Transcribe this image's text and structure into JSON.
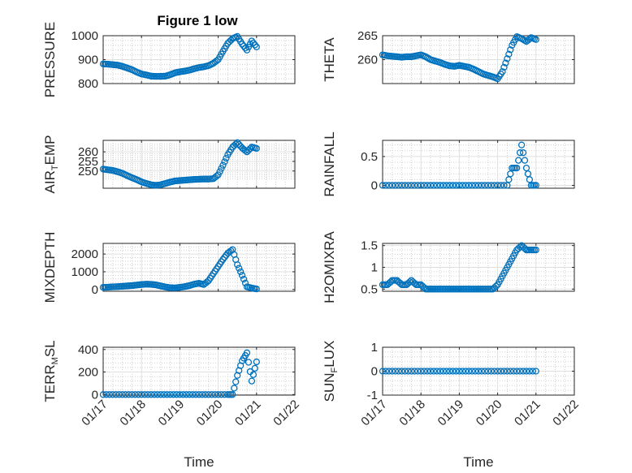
{
  "figure": {
    "title": "Figure 1 low",
    "marker_color": "#0072BD"
  },
  "chart_data": [
    {
      "type": "scatter",
      "title": "Figure 1 low",
      "ylabel": "PRESSURE",
      "xlabel": "",
      "xlim": [
        "01/17",
        "01/22"
      ],
      "xticks": [
        "01/17",
        "01/18",
        "01/19",
        "01/20",
        "01/21",
        "01/22"
      ],
      "ylim": [
        800,
        1000
      ],
      "yticks": [
        800,
        900,
        1000
      ],
      "yticklabels": [
        "800",
        "900",
        "1000"
      ],
      "grid": true,
      "x": [
        "01/17 00:00",
        "01/17 03:00",
        "01/17 06:00",
        "01/17 09:00",
        "01/17 12:00",
        "01/17 15:00",
        "01/17 18:00",
        "01/17 21:00",
        "01/18 00:00",
        "01/18 03:00",
        "01/18 06:00",
        "01/18 09:00",
        "01/18 12:00",
        "01/18 15:00",
        "01/18 18:00",
        "01/18 21:00",
        "01/19 00:00",
        "01/19 03:00",
        "01/19 06:00",
        "01/19 09:00",
        "01/19 12:00",
        "01/19 15:00",
        "01/19 18:00",
        "01/19 21:00",
        "01/20 00:00",
        "01/20 03:00",
        "01/20 06:00",
        "01/20 09:00",
        "01/20 12:00",
        "01/20 15:00",
        "01/20 18:00",
        "01/20 21:00",
        "01/21 00:00"
      ],
      "y": [
        882,
        881,
        879,
        877,
        872,
        865,
        858,
        848,
        840,
        836,
        831,
        830,
        830,
        831,
        837,
        845,
        849,
        852,
        856,
        862,
        867,
        870,
        875,
        885,
        900,
        935,
        968,
        988,
        997,
        965,
        940,
        978,
        953
      ]
    },
    {
      "type": "scatter",
      "ylabel": "THETA",
      "xlabel": "",
      "xlim": [
        "01/17",
        "01/22"
      ],
      "xticks": [
        "01/17",
        "01/18",
        "01/19",
        "01/20",
        "01/21",
        "01/22"
      ],
      "ylim": [
        255,
        265
      ],
      "yticks": [
        260,
        265
      ],
      "yticklabels": [
        "260",
        "265"
      ],
      "grid": true,
      "x": [
        "01/17 00:00",
        "01/17 03:00",
        "01/17 06:00",
        "01/17 09:00",
        "01/17 12:00",
        "01/17 15:00",
        "01/17 18:00",
        "01/17 21:00",
        "01/18 00:00",
        "01/18 03:00",
        "01/18 06:00",
        "01/18 09:00",
        "01/18 12:00",
        "01/18 15:00",
        "01/18 18:00",
        "01/18 21:00",
        "01/19 00:00",
        "01/19 03:00",
        "01/19 06:00",
        "01/19 09:00",
        "01/19 12:00",
        "01/19 15:00",
        "01/19 18:00",
        "01/19 21:00",
        "01/20 00:00",
        "01/20 03:00",
        "01/20 06:00",
        "01/20 09:00",
        "01/20 12:00",
        "01/20 15:00",
        "01/20 18:00",
        "01/20 21:00",
        "01/21 00:00"
      ],
      "y": [
        261.0,
        260.8,
        260.7,
        260.6,
        260.5,
        260.6,
        260.6,
        260.8,
        261.0,
        260.6,
        260.0,
        259.7,
        259.4,
        259.0,
        258.7,
        258.6,
        258.8,
        258.6,
        258.4,
        258.0,
        257.5,
        257.0,
        256.7,
        256.4,
        256.0,
        257.5,
        260.2,
        263.0,
        264.8,
        264.4,
        263.8,
        264.6,
        264.2
      ]
    },
    {
      "type": "scatter",
      "ylabel": "AIR_TEMP",
      "xlabel": "",
      "xlim": [
        "01/17",
        "01/22"
      ],
      "xticks": [
        "01/17",
        "01/18",
        "01/19",
        "01/20",
        "01/21",
        "01/22"
      ],
      "ylim": [
        241,
        266
      ],
      "yticks": [
        250,
        255,
        260
      ],
      "yticklabels": [
        "250",
        "255",
        "260"
      ],
      "grid": true,
      "x": [
        "01/17 00:00",
        "01/17 03:00",
        "01/17 06:00",
        "01/17 09:00",
        "01/17 12:00",
        "01/17 15:00",
        "01/17 18:00",
        "01/17 21:00",
        "01/18 00:00",
        "01/18 03:00",
        "01/18 06:00",
        "01/18 09:00",
        "01/18 12:00",
        "01/18 15:00",
        "01/18 18:00",
        "01/18 21:00",
        "01/19 00:00",
        "01/19 03:00",
        "01/19 06:00",
        "01/19 09:00",
        "01/19 12:00",
        "01/19 15:00",
        "01/19 18:00",
        "01/19 21:00",
        "01/20 00:00",
        "01/20 03:00",
        "01/20 06:00",
        "01/20 09:00",
        "01/20 12:00",
        "01/20 15:00",
        "01/20 18:00",
        "01/20 21:00",
        "01/21 00:00"
      ],
      "y": [
        251.0,
        250.6,
        250.3,
        249.6,
        248.8,
        247.6,
        246.5,
        245.5,
        244.3,
        243.5,
        242.8,
        242.5,
        242.8,
        243.5,
        244.2,
        244.8,
        245.0,
        245.2,
        245.4,
        245.6,
        245.7,
        245.8,
        245.8,
        246.0,
        248.0,
        253.0,
        258.5,
        262.5,
        264.8,
        262.0,
        260.0,
        262.5,
        261.8
      ]
    },
    {
      "type": "scatter",
      "ylabel": "RAINFALL",
      "xlabel": "",
      "xlim": [
        "01/17",
        "01/22"
      ],
      "xticks": [
        "01/17",
        "01/18",
        "01/19",
        "01/20",
        "01/21",
        "01/22"
      ],
      "ylim": [
        -0.05,
        0.78
      ],
      "yticks": [
        0,
        0.5
      ],
      "yticklabels": [
        "0",
        "0.5"
      ],
      "grid": true,
      "x": [
        "01/17 00:00",
        "01/17 06:00",
        "01/17 12:00",
        "01/17 18:00",
        "01/18 00:00",
        "01/18 06:00",
        "01/18 12:00",
        "01/18 18:00",
        "01/19 00:00",
        "01/19 06:00",
        "01/19 12:00",
        "01/19 18:00",
        "01/20 00:00",
        "01/20 06:00",
        "01/20 09:00",
        "01/20 12:00",
        "01/20 15:00",
        "01/20 18:00",
        "01/20 21:00",
        "01/21 00:00"
      ],
      "y": [
        0,
        0,
        0,
        0,
        0,
        0,
        0,
        0,
        0,
        0,
        0,
        0,
        0,
        0,
        0.3,
        0.3,
        0.7,
        0.3,
        0,
        0
      ]
    },
    {
      "type": "scatter",
      "ylabel": "MIXDEPTH",
      "xlabel": "",
      "xlim": [
        "01/17",
        "01/22"
      ],
      "xticks": [
        "01/17",
        "01/18",
        "01/19",
        "01/20",
        "01/21",
        "01/22"
      ],
      "ylim": [
        -100,
        2600
      ],
      "yticks": [
        0,
        1000,
        2000
      ],
      "yticklabels": [
        "0",
        "1000",
        "2000"
      ],
      "grid": true,
      "x": [
        "01/17 00:00",
        "01/17 03:00",
        "01/17 06:00",
        "01/17 09:00",
        "01/17 12:00",
        "01/17 15:00",
        "01/17 18:00",
        "01/17 21:00",
        "01/18 00:00",
        "01/18 03:00",
        "01/18 06:00",
        "01/18 09:00",
        "01/18 12:00",
        "01/18 15:00",
        "01/18 18:00",
        "01/18 21:00",
        "01/19 00:00",
        "01/19 03:00",
        "01/19 06:00",
        "01/19 09:00",
        "01/19 12:00",
        "01/19 15:00",
        "01/19 18:00",
        "01/19 21:00",
        "01/20 00:00",
        "01/20 03:00",
        "01/20 06:00",
        "01/20 09:00",
        "01/20 12:00",
        "01/20 15:00",
        "01/20 18:00",
        "01/20 21:00",
        "01/21 00:00"
      ],
      "y": [
        120,
        130,
        150,
        160,
        180,
        200,
        220,
        250,
        280,
        300,
        290,
        260,
        200,
        140,
        100,
        90,
        120,
        160,
        220,
        300,
        350,
        280,
        500,
        900,
        1300,
        1700,
        2050,
        2250,
        1400,
        800,
        150,
        80,
        30
      ]
    },
    {
      "type": "scatter",
      "ylabel": "H2OMIXRA",
      "xlabel": "",
      "xlim": [
        "01/17",
        "01/22"
      ],
      "xticks": [
        "01/17",
        "01/18",
        "01/19",
        "01/20",
        "01/21",
        "01/22"
      ],
      "ylim": [
        0.45,
        1.55
      ],
      "yticks": [
        0.5,
        1,
        1.5
      ],
      "yticklabels": [
        "0.5",
        "1",
        "1.5"
      ],
      "grid": true,
      "x": [
        "01/17 00:00",
        "01/17 03:00",
        "01/17 06:00",
        "01/17 09:00",
        "01/17 12:00",
        "01/17 15:00",
        "01/17 18:00",
        "01/17 21:00",
        "01/18 00:00",
        "01/18 03:00",
        "01/18 06:00",
        "01/18 09:00",
        "01/18 12:00",
        "01/18 15:00",
        "01/18 18:00",
        "01/18 21:00",
        "01/19 00:00",
        "01/19 03:00",
        "01/19 06:00",
        "01/19 09:00",
        "01/19 12:00",
        "01/19 15:00",
        "01/19 18:00",
        "01/19 21:00",
        "01/20 00:00",
        "01/20 03:00",
        "01/20 06:00",
        "01/20 09:00",
        "01/20 12:00",
        "01/20 15:00",
        "01/20 18:00",
        "01/20 21:00",
        "01/21 00:00"
      ],
      "y": [
        0.6,
        0.6,
        0.7,
        0.7,
        0.6,
        0.6,
        0.7,
        0.6,
        0.6,
        0.5,
        0.5,
        0.5,
        0.5,
        0.5,
        0.5,
        0.5,
        0.5,
        0.5,
        0.5,
        0.5,
        0.5,
        0.5,
        0.5,
        0.5,
        0.6,
        0.8,
        1.0,
        1.2,
        1.4,
        1.5,
        1.4,
        1.4,
        1.4
      ]
    },
    {
      "type": "scatter",
      "ylabel": "TERR_MSL",
      "xlabel": "Time",
      "xlim": [
        "01/17",
        "01/22"
      ],
      "xticks": [
        "01/17",
        "01/18",
        "01/19",
        "01/20",
        "01/21",
        "01/22"
      ],
      "ylim": [
        -5,
        420
      ],
      "yticks": [
        0,
        200,
        400
      ],
      "yticklabels": [
        "0",
        "200",
        "400"
      ],
      "grid": true,
      "x": [
        "01/17 00:00",
        "01/17 06:00",
        "01/17 12:00",
        "01/17 18:00",
        "01/18 00:00",
        "01/18 06:00",
        "01/18 12:00",
        "01/18 18:00",
        "01/19 00:00",
        "01/19 06:00",
        "01/19 12:00",
        "01/19 18:00",
        "01/20 00:00",
        "01/20 06:00",
        "01/20 09:00",
        "01/20 12:00",
        "01/20 15:00",
        "01/20 18:00",
        "01/20 21:00",
        "01/21 00:00"
      ],
      "y": [
        0,
        0,
        0,
        0,
        0,
        0,
        0,
        0,
        0,
        0,
        0,
        0,
        0,
        0,
        0,
        170,
        300,
        370,
        120,
        290
      ]
    },
    {
      "type": "scatter",
      "ylabel": "SUN_FLUX",
      "xlabel": "Time",
      "xlim": [
        "01/17",
        "01/22"
      ],
      "xticks": [
        "01/17",
        "01/18",
        "01/19",
        "01/20",
        "01/21",
        "01/22"
      ],
      "ylim": [
        -1,
        1
      ],
      "yticks": [
        -1,
        0,
        1
      ],
      "yticklabels": [
        "-1",
        "0",
        "1"
      ],
      "grid": true,
      "x": [
        "01/17 00:00",
        "01/17 06:00",
        "01/17 12:00",
        "01/17 18:00",
        "01/18 00:00",
        "01/18 06:00",
        "01/18 12:00",
        "01/18 18:00",
        "01/19 00:00",
        "01/19 06:00",
        "01/19 12:00",
        "01/19 18:00",
        "01/20 00:00",
        "01/20 06:00",
        "01/20 12:00",
        "01/20 18:00",
        "01/21 00:00"
      ],
      "y": [
        0,
        0,
        0,
        0,
        0,
        0,
        0,
        0,
        0,
        0,
        0,
        0,
        0,
        0,
        0,
        0,
        0
      ]
    }
  ]
}
